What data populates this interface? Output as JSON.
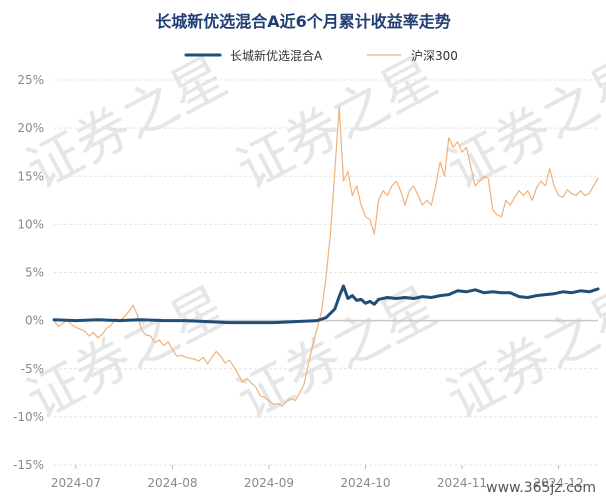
{
  "chart_data": {
    "type": "line",
    "title": "长城新优选混合A近6个月累计收益率走势",
    "xlabel": "",
    "ylabel": "",
    "ylim": [
      -15,
      25
    ],
    "yticks": [
      "-15%",
      "-10%",
      "-5%",
      "0%",
      "5%",
      "10%",
      "15%",
      "20%",
      "25%"
    ],
    "ytick_values": [
      -15,
      -10,
      -5,
      0,
      5,
      10,
      15,
      20,
      25
    ],
    "xticks": [
      "2024-07",
      "2024-08",
      "2024-09",
      "2024-10",
      "2024-11",
      "2024-12"
    ],
    "xtick_positions": [
      5,
      27,
      49,
      71,
      93,
      115
    ],
    "x_range": [
      0,
      124
    ],
    "grid": "horizontal",
    "legend": "top-center",
    "series": [
      {
        "name": "长城新优选混合A",
        "color": "#1f4e79",
        "values": [
          [
            0,
            0.1
          ],
          [
            5,
            0.0
          ],
          [
            10,
            0.1
          ],
          [
            15,
            0.0
          ],
          [
            20,
            0.1
          ],
          [
            25,
            0.0
          ],
          [
            30,
            0.0
          ],
          [
            35,
            -0.1
          ],
          [
            40,
            -0.2
          ],
          [
            45,
            -0.2
          ],
          [
            50,
            -0.2
          ],
          [
            55,
            -0.1
          ],
          [
            60,
            0.0
          ],
          [
            62,
            0.3
          ],
          [
            64,
            1.2
          ],
          [
            65,
            2.5
          ],
          [
            66,
            3.6
          ],
          [
            67,
            2.3
          ],
          [
            68,
            2.6
          ],
          [
            69,
            2.1
          ],
          [
            70,
            2.2
          ],
          [
            71,
            1.8
          ],
          [
            72,
            2.0
          ],
          [
            73,
            1.7
          ],
          [
            74,
            2.2
          ],
          [
            76,
            2.4
          ],
          [
            78,
            2.3
          ],
          [
            80,
            2.4
          ],
          [
            82,
            2.3
          ],
          [
            84,
            2.5
          ],
          [
            86,
            2.4
          ],
          [
            88,
            2.6
          ],
          [
            90,
            2.7
          ],
          [
            92,
            3.1
          ],
          [
            94,
            3.0
          ],
          [
            96,
            3.2
          ],
          [
            98,
            2.9
          ],
          [
            100,
            3.0
          ],
          [
            102,
            2.9
          ],
          [
            104,
            2.9
          ],
          [
            106,
            2.5
          ],
          [
            108,
            2.4
          ],
          [
            110,
            2.6
          ],
          [
            112,
            2.7
          ],
          [
            114,
            2.8
          ],
          [
            116,
            3.0
          ],
          [
            118,
            2.9
          ],
          [
            120,
            3.1
          ],
          [
            122,
            3.0
          ],
          [
            124,
            3.3
          ]
        ]
      },
      {
        "name": "沪深300",
        "color": "#f0b27a",
        "values": [
          [
            0,
            0.0
          ],
          [
            1,
            -0.6
          ],
          [
            2,
            -0.3
          ],
          [
            3,
            0.1
          ],
          [
            4,
            -0.4
          ],
          [
            5,
            -0.7
          ],
          [
            6,
            -0.9
          ],
          [
            7,
            -1.1
          ],
          [
            8,
            -1.6
          ],
          [
            9,
            -1.2
          ],
          [
            10,
            -1.8
          ],
          [
            11,
            -1.4
          ],
          [
            12,
            -0.8
          ],
          [
            13,
            -0.5
          ],
          [
            14,
            0.2
          ],
          [
            15,
            0.0
          ],
          [
            16,
            0.4
          ],
          [
            17,
            0.9
          ],
          [
            18,
            1.6
          ],
          [
            19,
            0.6
          ],
          [
            20,
            -1.0
          ],
          [
            21,
            -1.5
          ],
          [
            22,
            -1.6
          ],
          [
            23,
            -2.3
          ],
          [
            24,
            -2.0
          ],
          [
            25,
            -2.6
          ],
          [
            26,
            -2.2
          ],
          [
            27,
            -3.0
          ],
          [
            28,
            -3.7
          ],
          [
            29,
            -3.6
          ],
          [
            30,
            -3.8
          ],
          [
            31,
            -3.9
          ],
          [
            32,
            -4.0
          ],
          [
            33,
            -4.2
          ],
          [
            34,
            -3.8
          ],
          [
            35,
            -4.5
          ],
          [
            36,
            -3.8
          ],
          [
            37,
            -3.2
          ],
          [
            38,
            -3.7
          ],
          [
            39,
            -4.4
          ],
          [
            40,
            -4.1
          ],
          [
            41,
            -4.8
          ],
          [
            42,
            -5.6
          ],
          [
            43,
            -6.4
          ],
          [
            44,
            -6.0
          ],
          [
            45,
            -6.5
          ],
          [
            46,
            -6.9
          ],
          [
            47,
            -7.8
          ],
          [
            48,
            -8.0
          ],
          [
            49,
            -8.3
          ],
          [
            50,
            -8.7
          ],
          [
            51,
            -8.6
          ],
          [
            52,
            -8.9
          ],
          [
            53,
            -8.4
          ],
          [
            54,
            -8.1
          ],
          [
            55,
            -8.3
          ],
          [
            56,
            -7.5
          ],
          [
            57,
            -6.6
          ],
          [
            58,
            -4.5
          ],
          [
            59,
            -2.5
          ],
          [
            60,
            -0.8
          ],
          [
            61,
            1.0
          ],
          [
            62,
            4.5
          ],
          [
            63,
            9.0
          ],
          [
            64,
            15.5
          ],
          [
            65,
            22.2
          ],
          [
            66,
            14.5
          ],
          [
            67,
            15.5
          ],
          [
            68,
            13.0
          ],
          [
            69,
            14.0
          ],
          [
            70,
            12.0
          ],
          [
            71,
            10.8
          ],
          [
            72,
            10.5
          ],
          [
            73,
            9.0
          ],
          [
            74,
            12.5
          ],
          [
            75,
            13.5
          ],
          [
            76,
            13.0
          ],
          [
            77,
            14.0
          ],
          [
            78,
            14.5
          ],
          [
            79,
            13.5
          ],
          [
            80,
            12.0
          ],
          [
            81,
            13.5
          ],
          [
            82,
            14.0
          ],
          [
            83,
            13.0
          ],
          [
            84,
            12.0
          ],
          [
            85,
            12.5
          ],
          [
            86,
            12.0
          ],
          [
            87,
            14.0
          ],
          [
            88,
            16.5
          ],
          [
            89,
            15.0
          ],
          [
            90,
            19.0
          ],
          [
            91,
            18.0
          ],
          [
            92,
            18.6
          ],
          [
            93,
            17.5
          ],
          [
            94,
            18.0
          ],
          [
            95,
            16.0
          ],
          [
            96,
            14.0
          ],
          [
            97,
            14.5
          ],
          [
            98,
            15.0
          ],
          [
            99,
            14.8
          ],
          [
            100,
            11.5
          ],
          [
            101,
            11.0
          ],
          [
            102,
            10.8
          ],
          [
            103,
            12.5
          ],
          [
            104,
            12.0
          ],
          [
            105,
            12.8
          ],
          [
            106,
            13.5
          ],
          [
            107,
            13.0
          ],
          [
            108,
            13.5
          ],
          [
            109,
            12.5
          ],
          [
            110,
            13.8
          ],
          [
            111,
            14.5
          ],
          [
            112,
            14.0
          ],
          [
            113,
            15.8
          ],
          [
            114,
            14.0
          ],
          [
            115,
            13.0
          ],
          [
            116,
            12.8
          ],
          [
            117,
            13.6
          ],
          [
            118,
            13.2
          ],
          [
            119,
            13.0
          ],
          [
            120,
            13.5
          ],
          [
            121,
            13.0
          ],
          [
            122,
            13.2
          ],
          [
            123,
            14.0
          ],
          [
            124,
            14.8
          ]
        ]
      }
    ]
  },
  "watermark": {
    "text": "www.365jz.com",
    "pattern_text": "证券之星",
    "color": "#e6e6e6"
  }
}
